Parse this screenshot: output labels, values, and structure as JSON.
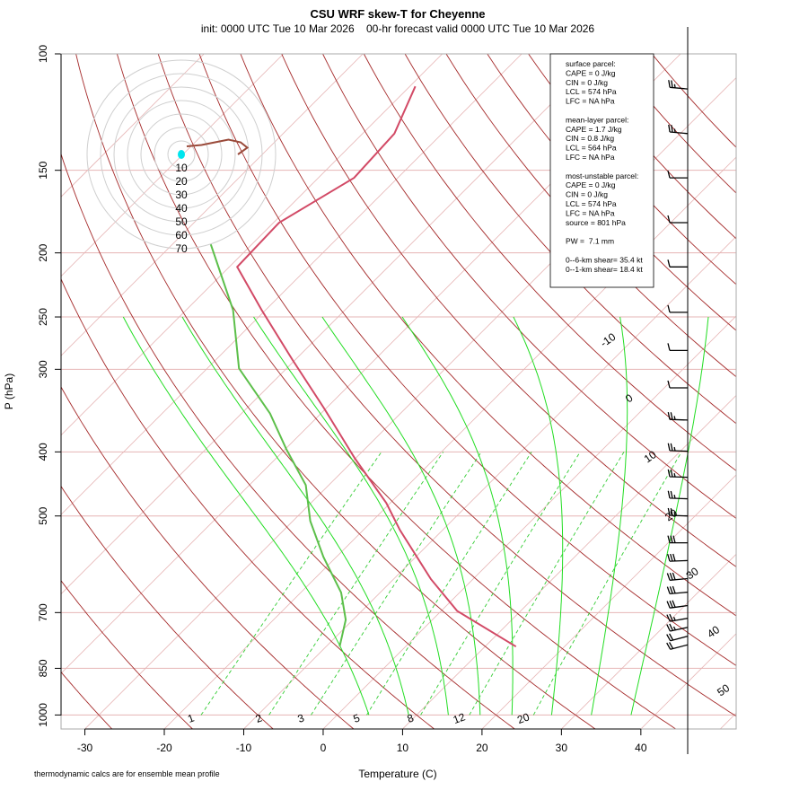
{
  "chart_data": {
    "type": "skew-t",
    "title": "CSU WRF skew-T for Cheyenne",
    "subtitle": "init: 0000 UTC Tue 10 Mar 2026    00-hr forecast valid 0000 UTC Tue 10 Mar 2026",
    "xlabel": "Temperature (C)",
    "ylabel": "P (hPa)",
    "xlim": [
      -33,
      52
    ],
    "xticks": [
      -30,
      -20,
      -10,
      0,
      10,
      20,
      30,
      40
    ],
    "ylim": [
      1050,
      100
    ],
    "yticks": [
      1000,
      850,
      700,
      500,
      400,
      300,
      250,
      200,
      150,
      100
    ],
    "log_y": true,
    "grid": true,
    "temperature": {
      "color": "#d24a66",
      "pressure": [
        112,
        132,
        154,
        180,
        210,
        244,
        290,
        344,
        409,
        478,
        525,
        623,
        696,
        788
      ],
      "values": [
        -69.3,
        -66.0,
        -65.5,
        -69.3,
        -69.0,
        -60.5,
        -50.4,
        -40.2,
        -30.1,
        -20.5,
        -15.4,
        -5.3,
        2.0,
        13.9
      ]
    },
    "dewpoint": {
      "color": "#5cbf4a",
      "pressure": [
        194,
        244,
        299,
        350,
        396,
        449,
        509,
        577,
        653,
        718,
        788
      ],
      "values": [
        -75.2,
        -64.1,
        -56.0,
        -46.4,
        -39.9,
        -32.9,
        -27.8,
        -21.6,
        -14.9,
        -10.9,
        -8.3
      ]
    },
    "isotherms": {
      "color": "#e6b4b4",
      "label_color": "#a52a2a",
      "values": [
        -100,
        -90,
        -80,
        -70,
        -60,
        -50,
        -40,
        -30,
        -20,
        -10,
        0,
        10,
        20,
        30,
        40,
        50
      ],
      "value_labels": [
        null,
        null,
        null,
        null,
        null,
        null,
        null,
        null,
        null,
        "-10",
        "0",
        "10",
        "20",
        "30",
        "40",
        "50"
      ]
    },
    "dry_adiabats": {
      "color": "#a52a2a",
      "values": [
        -30,
        -20,
        -10,
        0,
        10,
        20,
        30,
        40,
        50,
        60,
        70,
        80,
        90,
        100,
        110,
        120,
        130,
        140,
        150,
        160,
        170
      ]
    },
    "moist_adiabats": {
      "color": "#22dd22",
      "values": [
        4,
        9,
        14,
        18,
        22,
        27,
        32,
        37
      ]
    },
    "mixing_ratios": {
      "color": "#33cc33",
      "values": [
        1,
        2,
        3,
        5,
        8,
        12,
        20
      ]
    },
    "hodograph": {
      "color": "#9a4a3a",
      "rings": [
        10,
        20,
        30,
        40,
        50,
        60,
        70
      ],
      "u": [
        4,
        15,
        25,
        35,
        44,
        49,
        42
      ],
      "v": [
        6,
        7,
        9,
        11,
        9,
        5,
        0
      ]
    },
    "winds": {
      "pressure": [
        113,
        132,
        154,
        180,
        210,
        246,
        281,
        320,
        358,
        399,
        437,
        471,
        500,
        549,
        584,
        622,
        652,
        683,
        714,
        737,
        760,
        783
      ],
      "speed": [
        25,
        25,
        10,
        10,
        10,
        10,
        10,
        10,
        25,
        25,
        25,
        25,
        25,
        30,
        30,
        30,
        30,
        30,
        25,
        25,
        20,
        20
      ],
      "direction": [
        275,
        275,
        270,
        270,
        270,
        270,
        270,
        270,
        272,
        272,
        272,
        272,
        272,
        270,
        268,
        265,
        265,
        262,
        260,
        258,
        255,
        255
      ]
    },
    "parcel_info": [
      [
        "surface parcel:",
        "CAPE = 0 J/kg",
        "CIN = 0 J/kg",
        "LCL = 574 hPa",
        "LFC = NA hPa"
      ],
      [
        "mean-layer parcel:",
        "CAPE = 1.7 J/kg",
        "CIN = 0.8 J/kg",
        "LCL = 564 hPa",
        "LFC = NA hPa"
      ],
      [
        "most-unstable parcel:",
        "CAPE = 0 J/kg",
        "CIN = 0 J/kg",
        "LCL = 574 hPa",
        "LFC = NA hPa",
        "source = 801 hPa"
      ],
      [
        "PW =  7.1 mm"
      ],
      [
        "0--6-km shear= 35.4 kt",
        "0--1-km shear= 18.4 kt"
      ]
    ],
    "footnote": "thermodynamic calcs are for ensemble mean profile"
  }
}
